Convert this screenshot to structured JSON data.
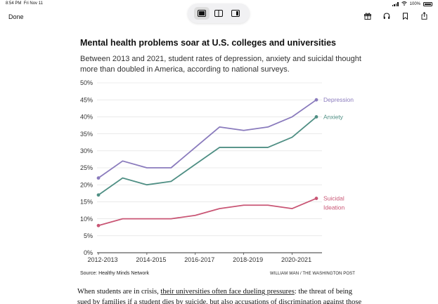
{
  "status_bar": {
    "time": "8:54 PM",
    "date": "Fri Nov 11",
    "battery": "100%"
  },
  "nav": {
    "done_label": "Done"
  },
  "article": {
    "title": "Mental health problems soar at U.S. colleges and universities",
    "subtitle": "Between 2013 and 2021, student rates of depression, anxiety and suicidal thought more than doubled in America, according to national surveys.",
    "source": "Source: Healthy Minds Network",
    "credit": "WILLIAM WAN / THE WASHINGTON POST",
    "body_before_link": "When students are in crisis, ",
    "body_link": "their universities often face dueling pressures",
    "body_after_link": ": the threat of being sued by families if a student dies by suicide, but also accusations of discrimination against those"
  },
  "chart_data": {
    "type": "line",
    "x": [
      0,
      1,
      2,
      3,
      4,
      5,
      6,
      7,
      8,
      9
    ],
    "tick_positions": [
      0,
      2,
      4,
      6,
      8
    ],
    "tick_labels": [
      "2012-2013",
      "2014-2015",
      "2016-2017",
      "2018-2019",
      "2020-2021"
    ],
    "ylim": [
      0,
      50
    ],
    "yticks": [
      0,
      5,
      10,
      15,
      20,
      25,
      30,
      35,
      40,
      45,
      50
    ],
    "ytick_labels": [
      "0%",
      "5%",
      "10%",
      "15%",
      "20%",
      "25%",
      "30%",
      "35%",
      "40%",
      "45%",
      "50%"
    ],
    "grid": true,
    "series": [
      {
        "name": "Depression",
        "color": "#8a7bbd",
        "values": [
          22,
          27,
          25,
          25,
          31,
          37,
          36,
          37,
          40,
          45
        ]
      },
      {
        "name": "Anxiety",
        "color": "#4f8f84",
        "values": [
          17,
          22,
          20,
          21,
          26,
          31,
          31,
          31,
          34,
          40
        ]
      },
      {
        "name": "Suicidal Ideation",
        "label_lines": [
          "Suicidal",
          "Ideation"
        ],
        "color": "#c95675",
        "values": [
          8,
          10,
          10,
          10,
          11,
          13,
          14,
          14,
          13,
          16
        ]
      }
    ]
  }
}
